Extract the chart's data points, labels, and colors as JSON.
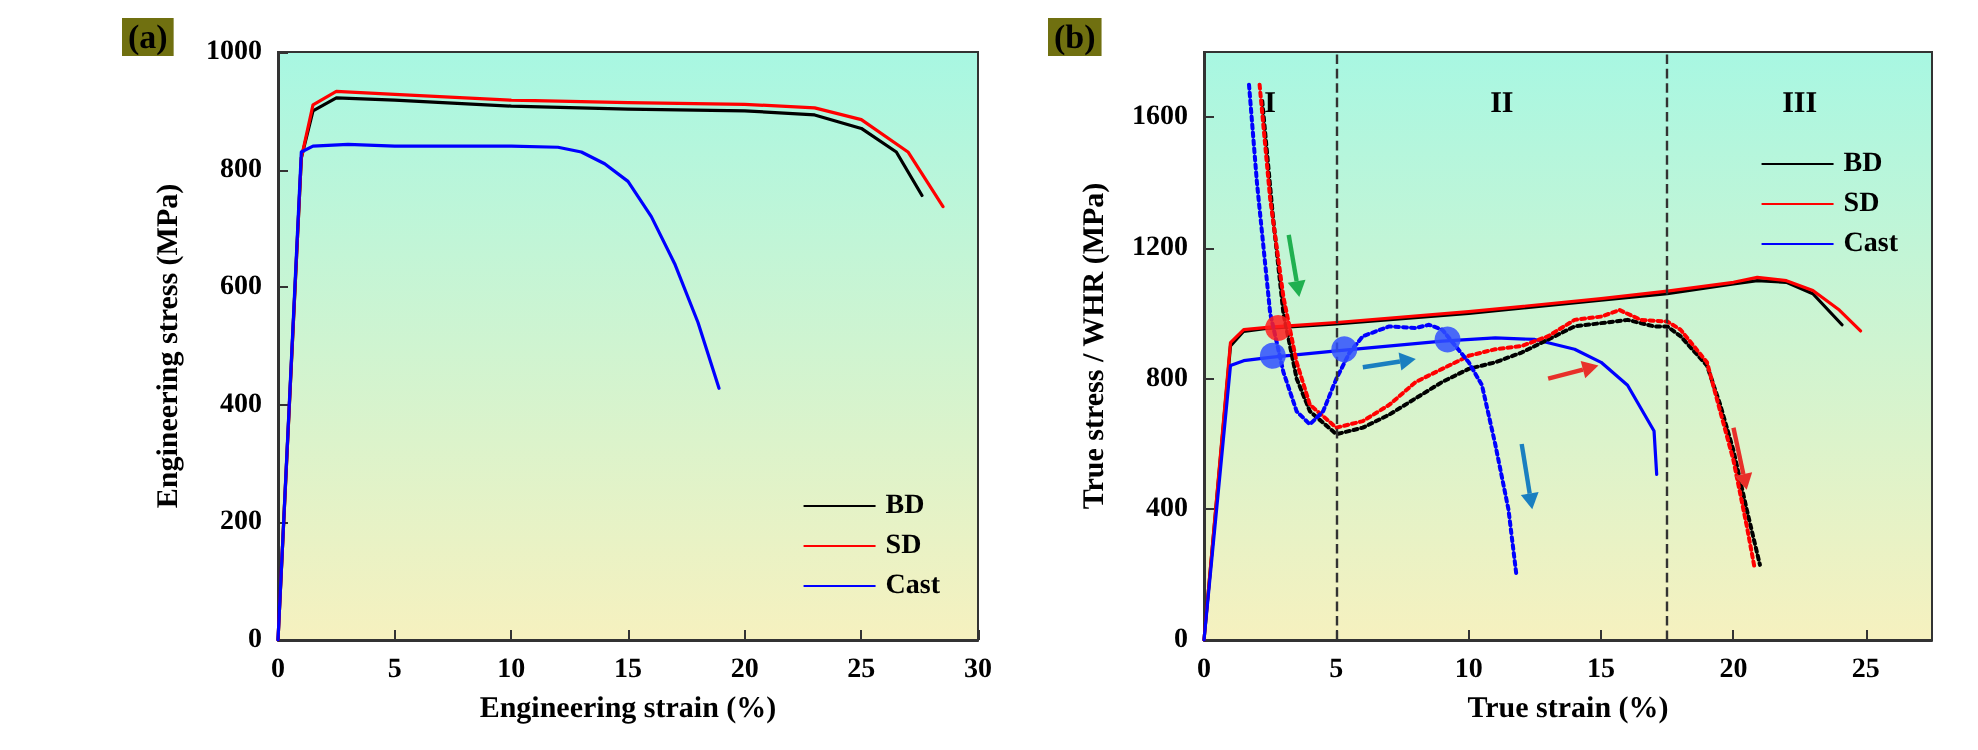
{
  "chart_data": [
    {
      "type": "line",
      "title": "(a)",
      "xlabel": "Engineering strain (%)",
      "ylabel": "Engineering stress (MPa)",
      "xlim": [
        0,
        30
      ],
      "ylim": [
        0,
        1000
      ],
      "xticks": [
        0,
        5,
        10,
        15,
        20,
        25,
        30
      ],
      "yticks": [
        0,
        200,
        400,
        600,
        800,
        1000
      ],
      "grid": false,
      "legend": "bottom right",
      "marker": "none",
      "series": [
        {
          "name": "BD",
          "color": "#000000",
          "line_style": "solid",
          "x": [
            0,
            1,
            1.5,
            2.5,
            5,
            10,
            15,
            20,
            23,
            25,
            26.5,
            27.6
          ],
          "values": [
            0,
            820,
            900,
            922,
            918,
            908,
            903,
            900,
            893,
            870,
            830,
            756
          ]
        },
        {
          "name": "SD",
          "color": "#ff0000",
          "line_style": "solid",
          "x": [
            0,
            1,
            1.5,
            2.5,
            5,
            10,
            15,
            20,
            23,
            25,
            27,
            28.5
          ],
          "values": [
            0,
            820,
            910,
            933,
            928,
            918,
            914,
            911,
            905,
            885,
            830,
            737
          ]
        },
        {
          "name": "Cast",
          "color": "#0000ff",
          "line_style": "solid",
          "x": [
            0,
            1,
            1.5,
            3,
            5,
            10,
            12,
            13,
            14,
            15,
            16,
            17,
            18,
            18.9
          ],
          "values": [
            0,
            830,
            840,
            843,
            840,
            840,
            838,
            830,
            810,
            780,
            720,
            640,
            540,
            428
          ]
        }
      ]
    },
    {
      "type": "line",
      "title": "(b)",
      "xlabel": "True strain (%)",
      "ylabel": "True stress / WHR (MPa)",
      "xlim": [
        0,
        27.5
      ],
      "ylim": [
        0,
        1800
      ],
      "xticks": [
        0,
        5,
        10,
        15,
        20,
        25
      ],
      "yticks": [
        0,
        400,
        800,
        1200,
        1600
      ],
      "grid": false,
      "legend": "top right",
      "marker": "none",
      "ref_lines": [
        {
          "axis": "x",
          "value": 5,
          "line_style": "dashed",
          "color": "#333333"
        },
        {
          "axis": "x",
          "value": 17.5,
          "line_style": "dashed",
          "color": "#333333"
        }
      ],
      "annotations": [
        "I",
        "II",
        "III"
      ],
      "series": [
        {
          "name": "BD",
          "color": "#000000",
          "line_style": "solid",
          "x": [
            0,
            1,
            1.5,
            2.5,
            5,
            10,
            15,
            17.5,
            20,
            20.9,
            22,
            23,
            24.1
          ],
          "values": [
            0,
            900,
            945,
            955,
            968,
            1000,
            1040,
            1060,
            1090,
            1100,
            1095,
            1060,
            965
          ]
        },
        {
          "name": "SD",
          "color": "#ff0000",
          "line_style": "solid",
          "x": [
            0,
            1,
            1.5,
            2.5,
            5,
            10,
            15,
            17.5,
            20,
            20.9,
            22,
            23,
            24,
            24.8
          ],
          "values": [
            0,
            910,
            950,
            958,
            972,
            1005,
            1045,
            1068,
            1095,
            1110,
            1100,
            1070,
            1010,
            946
          ]
        },
        {
          "name": "Cast",
          "color": "#0000ff",
          "line_style": "solid",
          "x": [
            0,
            1,
            1.5,
            2.5,
            5,
            9,
            11,
            12.5,
            14,
            15,
            16,
            17,
            17.1
          ],
          "values": [
            0,
            840,
            855,
            865,
            885,
            915,
            925,
            920,
            890,
            850,
            780,
            640,
            507
          ]
        },
        {
          "color": "#000000",
          "line_style": "dotted",
          "x": [
            2.2,
            2.6,
            3,
            3.5,
            4,
            5,
            6,
            7,
            8,
            9,
            10,
            11,
            12,
            13,
            14,
            15,
            16,
            17,
            17.5,
            18,
            19,
            19.5,
            20,
            20.5,
            21
          ],
          "values": [
            1650,
            1300,
            1000,
            800,
            700,
            630,
            650,
            690,
            740,
            790,
            830,
            850,
            880,
            920,
            960,
            970,
            980,
            960,
            960,
            930,
            840,
            720,
            580,
            400,
            230
          ]
        },
        {
          "color": "#ff0000",
          "line_style": "dotted",
          "x": [
            2.1,
            2.5,
            3,
            3.5,
            4,
            5,
            6,
            7,
            8,
            9,
            10,
            11,
            12,
            13,
            14,
            15,
            15.7,
            16.5,
            17.5,
            18,
            19,
            19.5,
            20,
            20.5,
            20.8
          ],
          "values": [
            1700,
            1350,
            1050,
            850,
            720,
            650,
            670,
            720,
            790,
            830,
            870,
            890,
            900,
            930,
            980,
            990,
            1010,
            980,
            975,
            950,
            850,
            700,
            550,
            350,
            220
          ]
        },
        {
          "color": "#0000ff",
          "line_style": "dotted",
          "x": [
            1.7,
            2,
            2.5,
            3,
            3.5,
            4,
            4.5,
            5,
            5.5,
            6,
            7,
            8,
            8.5,
            9,
            9.5,
            10,
            10.5,
            11,
            11.5,
            11.8
          ],
          "values": [
            1700,
            1400,
            1000,
            820,
            700,
            660,
            700,
            800,
            880,
            930,
            960,
            955,
            965,
            950,
            900,
            850,
            780,
            600,
            400,
            200
          ]
        },
        {
          "type": "scatter",
          "marker": "circle",
          "colors": [
            "#ff2020",
            "#3050ff",
            "#3050ff",
            "#3050ff"
          ],
          "x": [
            2.8,
            2.6,
            5.3,
            9.2
          ],
          "values": [
            955,
            870,
            890,
            920
          ]
        }
      ]
    }
  ]
}
